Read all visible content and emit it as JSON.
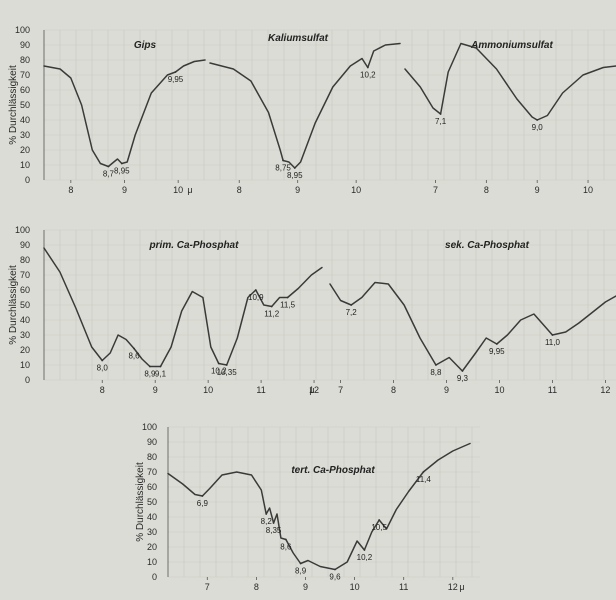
{
  "chart_data": [
    {
      "type": "line",
      "group": "A",
      "title": "Gips",
      "ylabel": "% Durchlässigkeit",
      "unit": "μ",
      "yticks": [
        "0",
        "10",
        "20",
        "30",
        "40",
        "50",
        "60",
        "70",
        "80",
        "90",
        "100"
      ],
      "xticks": [
        {
          "v": 8,
          "label": "8"
        },
        {
          "v": 9,
          "label": "9"
        },
        {
          "v": 10,
          "label": "10"
        }
      ],
      "x": [
        7.5,
        7.8,
        8.0,
        8.2,
        8.4,
        8.55,
        8.7,
        8.8,
        8.87,
        8.95,
        9.05,
        9.2,
        9.5,
        9.8,
        9.95,
        10.1,
        10.3,
        10.5
      ],
      "y": [
        76,
        74,
        68,
        50,
        20,
        11,
        9,
        12,
        14,
        11,
        12,
        30,
        58,
        70,
        72,
        76,
        79,
        80
      ],
      "peaks": [
        {
          "x": 8.7,
          "y": 9,
          "label": "8,7"
        },
        {
          "x": 8.95,
          "y": 11,
          "label": "8,95"
        },
        {
          "x": 9.95,
          "y": 72,
          "label": "9,95"
        }
      ]
    },
    {
      "type": "line",
      "group": "A",
      "title": "Kaliumsulfat",
      "xticks": [
        {
          "v": 8,
          "label": "8"
        },
        {
          "v": 9,
          "label": "9"
        },
        {
          "v": 10,
          "label": "10"
        }
      ],
      "x": [
        7.5,
        7.9,
        8.2,
        8.5,
        8.7,
        8.75,
        8.85,
        8.95,
        9.05,
        9.3,
        9.6,
        9.9,
        10.1,
        10.2,
        10.3,
        10.5,
        10.75
      ],
      "y": [
        78,
        74,
        66,
        45,
        20,
        13,
        12,
        8,
        12,
        38,
        62,
        76,
        81,
        75,
        86,
        90,
        91
      ],
      "peaks": [
        {
          "x": 8.75,
          "y": 13,
          "label": "8,75"
        },
        {
          "x": 8.95,
          "y": 8,
          "label": "8,95"
        },
        {
          "x": 10.2,
          "y": 75,
          "label": "10,2"
        }
      ]
    },
    {
      "type": "line",
      "group": "A",
      "title": "Ammoniumsulfat",
      "xticks": [
        {
          "v": 7,
          "label": "7"
        },
        {
          "v": 8,
          "label": "8"
        },
        {
          "v": 9,
          "label": "9"
        },
        {
          "v": 10,
          "label": "10"
        }
      ],
      "x": [
        6.4,
        6.7,
        6.95,
        7.1,
        7.25,
        7.5,
        7.8,
        8.2,
        8.6,
        8.9,
        9.0,
        9.2,
        9.5,
        9.9,
        10.3,
        10.55
      ],
      "y": [
        74,
        62,
        48,
        44,
        72,
        91,
        88,
        74,
        54,
        42,
        40,
        43,
        58,
        70,
        75,
        76
      ],
      "peaks": [
        {
          "x": 7.1,
          "y": 44,
          "label": "7,1"
        },
        {
          "x": 9.0,
          "y": 40,
          "label": "9,0"
        }
      ]
    },
    {
      "type": "line",
      "group": "B",
      "title": "prim. Ca-Phosphat",
      "ylabel": "% Durchlässigkeit",
      "unit": "μ",
      "yticks": [
        "0",
        "10",
        "20",
        "30",
        "40",
        "50",
        "60",
        "70",
        "80",
        "90",
        "100"
      ],
      "xticks": [
        {
          "v": 8,
          "label": "8"
        },
        {
          "v": 9,
          "label": "9"
        },
        {
          "v": 10,
          "label": "10"
        },
        {
          "v": 11,
          "label": "11"
        },
        {
          "v": 12,
          "label": "12"
        }
      ],
      "x": [
        6.9,
        7.2,
        7.5,
        7.8,
        8.0,
        8.15,
        8.3,
        8.45,
        8.6,
        8.75,
        8.9,
        9.1,
        9.3,
        9.5,
        9.7,
        9.9,
        10.05,
        10.2,
        10.35,
        10.55,
        10.75,
        10.9,
        11.05,
        11.2,
        11.35,
        11.5,
        11.7,
        11.95,
        12.15
      ],
      "y": [
        88,
        72,
        48,
        22,
        13,
        18,
        30,
        27,
        21,
        14,
        9,
        9,
        22,
        46,
        59,
        55,
        22,
        11,
        10,
        28,
        55,
        60,
        50,
        49,
        55,
        55,
        61,
        70,
        75
      ],
      "peaks": [
        {
          "x": 8.0,
          "y": 13,
          "label": "8,0"
        },
        {
          "x": 8.6,
          "y": 21,
          "label": "8,6"
        },
        {
          "x": 8.9,
          "y": 9,
          "label": "8,9"
        },
        {
          "x": 9.1,
          "y": 9,
          "label": "9,1"
        },
        {
          "x": 10.2,
          "y": 11,
          "label": "10,2"
        },
        {
          "x": 10.35,
          "y": 10,
          "label": "10,35"
        },
        {
          "x": 10.9,
          "y": 60,
          "label": "10,9"
        },
        {
          "x": 11.2,
          "y": 49,
          "label": "11,2"
        },
        {
          "x": 11.5,
          "y": 55,
          "label": "11,5"
        }
      ]
    },
    {
      "type": "line",
      "group": "B",
      "title": "sek. Ca-Phosphat",
      "xticks": [
        {
          "v": 7,
          "label": "7"
        },
        {
          "v": 8,
          "label": "8"
        },
        {
          "v": 9,
          "label": "9"
        },
        {
          "v": 10,
          "label": "10"
        },
        {
          "v": 11,
          "label": "11"
        },
        {
          "v": 12,
          "label": "12"
        }
      ],
      "x": [
        6.8,
        7.0,
        7.2,
        7.4,
        7.65,
        7.9,
        8.2,
        8.5,
        8.8,
        9.05,
        9.3,
        9.55,
        9.75,
        9.95,
        10.15,
        10.4,
        10.65,
        10.85,
        11.0,
        11.25,
        11.5,
        11.75,
        12.0,
        12.2
      ],
      "y": [
        64,
        53,
        50,
        55,
        65,
        64,
        50,
        28,
        10,
        15,
        6,
        18,
        28,
        24,
        30,
        40,
        44,
        36,
        30,
        32,
        38,
        45,
        52,
        56
      ],
      "peaks": [
        {
          "x": 7.2,
          "y": 50,
          "label": "7,2"
        },
        {
          "x": 8.8,
          "y": 10,
          "label": "8,8"
        },
        {
          "x": 9.3,
          "y": 6,
          "label": "9,3"
        },
        {
          "x": 9.95,
          "y": 24,
          "label": "9,95"
        },
        {
          "x": 11.0,
          "y": 30,
          "label": "11,0"
        }
      ]
    },
    {
      "type": "line",
      "group": "C",
      "title": "tert. Ca-Phosphat",
      "ylabel": "% Durchlässigkeit",
      "unit": "μ",
      "yticks": [
        "0",
        "10",
        "20",
        "30",
        "40",
        "50",
        "60",
        "70",
        "80",
        "90",
        "100"
      ],
      "xticks": [
        {
          "v": 7,
          "label": "7"
        },
        {
          "v": 8,
          "label": "8"
        },
        {
          "v": 9,
          "label": "9"
        },
        {
          "v": 10,
          "label": "10"
        },
        {
          "v": 11,
          "label": "11"
        },
        {
          "v": 12,
          "label": "12"
        }
      ],
      "x": [
        6.2,
        6.5,
        6.75,
        6.9,
        7.05,
        7.3,
        7.6,
        7.9,
        8.1,
        8.2,
        8.27,
        8.35,
        8.42,
        8.5,
        8.6,
        8.75,
        8.9,
        9.05,
        9.3,
        9.6,
        9.85,
        10.05,
        10.2,
        10.35,
        10.5,
        10.65,
        10.85,
        11.1,
        11.4,
        11.7,
        12.0,
        12.35
      ],
      "y": [
        69,
        62,
        55,
        54,
        59,
        68,
        70,
        68,
        58,
        42,
        46,
        36,
        42,
        26,
        25,
        16,
        9,
        11,
        7,
        5,
        10,
        24,
        18,
        30,
        38,
        32,
        45,
        57,
        70,
        78,
        84,
        89
      ],
      "peaks": [
        {
          "x": 6.9,
          "y": 54,
          "label": "6,9"
        },
        {
          "x": 8.2,
          "y": 42,
          "label": "8,2"
        },
        {
          "x": 8.35,
          "y": 36,
          "label": "8,35"
        },
        {
          "x": 8.6,
          "y": 25,
          "label": "8,6"
        },
        {
          "x": 8.9,
          "y": 9,
          "label": "8,9"
        },
        {
          "x": 9.6,
          "y": 5,
          "label": "9,6"
        },
        {
          "x": 10.2,
          "y": 18,
          "label": "10,2"
        },
        {
          "x": 10.5,
          "y": 38,
          "label": "10,5"
        },
        {
          "x": 11.4,
          "y": 70,
          "label": "11,4"
        }
      ]
    }
  ]
}
